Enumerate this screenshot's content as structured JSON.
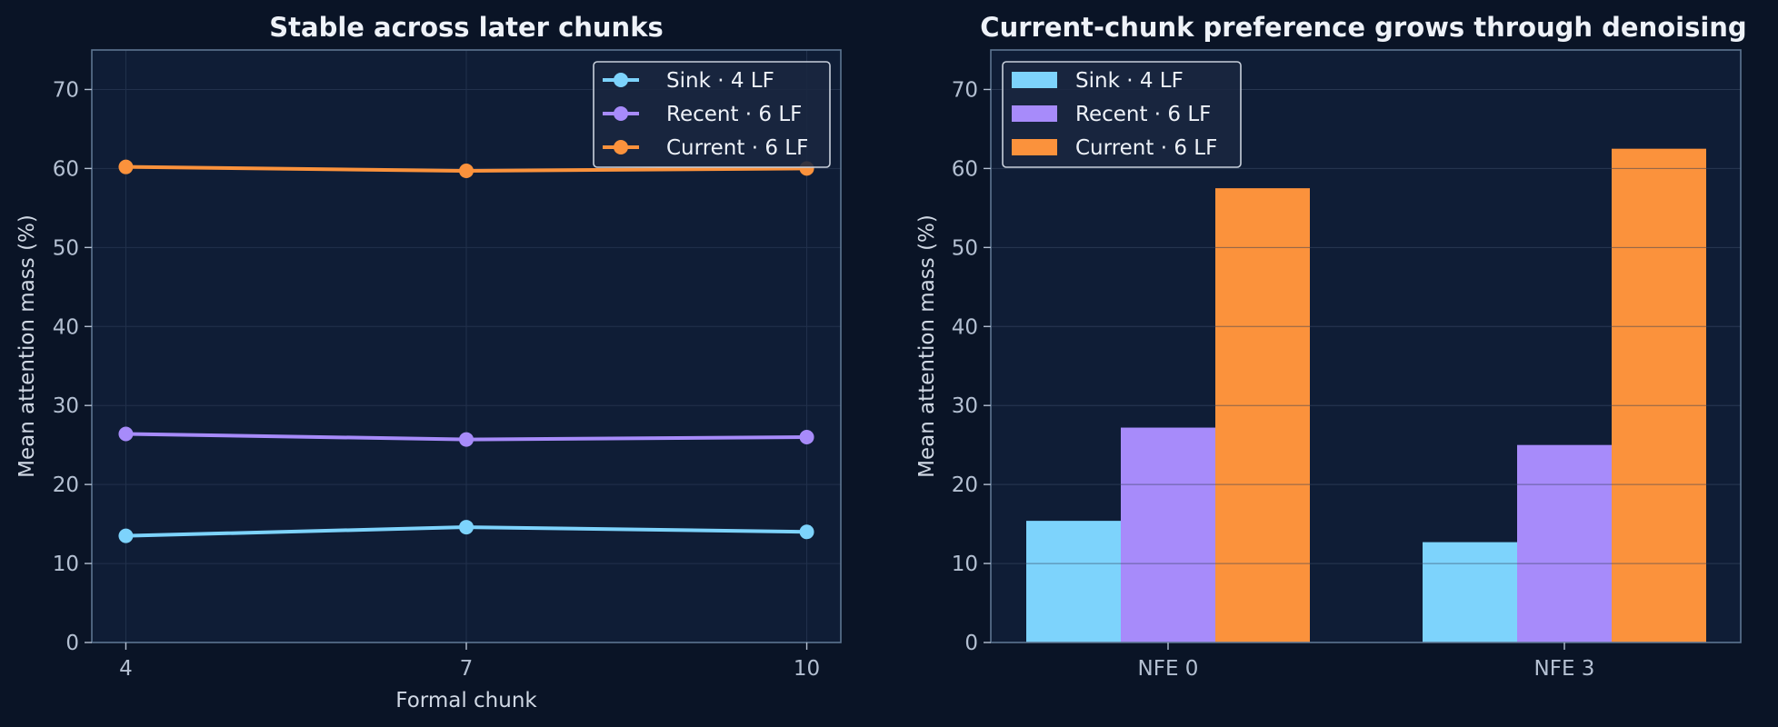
{
  "colors": {
    "background": "#0a1426",
    "plot_background": "#0f1d36",
    "grid": "#22314c",
    "spine": "#5d7591",
    "sink": "#7dd3fc",
    "recent": "#a78bfa",
    "current": "#fb923c"
  },
  "chart_data": [
    {
      "type": "line",
      "title": "Stable across later chunks",
      "xlabel": "Formal chunk",
      "ylabel": "Mean attention mass (%)",
      "x": [
        4,
        7,
        10
      ],
      "xticks": [
        "4",
        "7",
        "10"
      ],
      "xlim": [
        3.7,
        10.3
      ],
      "ylim": [
        0,
        75
      ],
      "yticks": [
        "0",
        "10",
        "20",
        "30",
        "40",
        "50",
        "60",
        "70"
      ],
      "grid": true,
      "legend_position": "top-right",
      "series": [
        {
          "name": "Sink · 4 LF",
          "values": [
            13.5,
            14.6,
            14.0
          ]
        },
        {
          "name": "Recent · 6 LF",
          "values": [
            26.4,
            25.7,
            26.0
          ]
        },
        {
          "name": "Current · 6 LF",
          "values": [
            60.2,
            59.7,
            60.0
          ]
        }
      ]
    },
    {
      "type": "bar",
      "title": "Current-chunk preference grows through denoising",
      "xlabel": "",
      "ylabel": "Mean attention mass (%)",
      "categories": [
        "NFE 0",
        "NFE 3"
      ],
      "ylim": [
        0,
        75
      ],
      "yticks": [
        "0",
        "10",
        "20",
        "30",
        "40",
        "50",
        "60",
        "70"
      ],
      "grid": true,
      "legend_position": "top-left",
      "series": [
        {
          "name": "Sink · 4 LF",
          "values": [
            15.4,
            12.7
          ]
        },
        {
          "name": "Recent · 6 LF",
          "values": [
            27.2,
            25.0
          ]
        },
        {
          "name": "Current · 6 LF",
          "values": [
            57.5,
            62.5
          ]
        }
      ]
    }
  ]
}
